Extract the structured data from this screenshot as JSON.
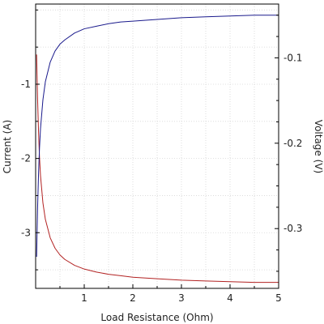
{
  "chart_data": {
    "type": "line",
    "xlabel": "Load Resistance (Ohm)",
    "ylabel_left": "Current (A)",
    "ylabel_right": "Voltage (V)",
    "xlim": [
      0,
      5
    ],
    "ylim_left": [
      -3.75,
      0.08
    ],
    "ylim_right": [
      -0.37,
      -0.037
    ],
    "grid": true,
    "x_ticks": [
      1,
      2,
      3,
      4,
      5
    ],
    "y_left_ticks": [
      -1,
      -2,
      -3
    ],
    "y_right_ticks": [
      -0.1,
      -0.2,
      -0.3
    ],
    "x_tick_labels": [
      "1",
      "2",
      "3",
      "4",
      "5"
    ],
    "y_left_tick_labels": [
      "-1",
      "-2",
      "-3"
    ],
    "y_right_tick_labels": [
      "-0.1",
      "-0.2",
      "-0.3"
    ],
    "series": [
      {
        "axis": "left",
        "color": "#b22222",
        "x": [
          0.02,
          0.04,
          0.06,
          0.08,
          0.1,
          0.15,
          0.2,
          0.3,
          0.4,
          0.5,
          0.6,
          0.8,
          1.0,
          1.25,
          1.5,
          1.75,
          2.0,
          2.5,
          3.0,
          3.5,
          4.0,
          4.5,
          5.0
        ],
        "y": [
          -0.6,
          -1.2,
          -1.65,
          -1.99,
          -2.23,
          -2.6,
          -2.82,
          -3.07,
          -3.21,
          -3.3,
          -3.36,
          -3.44,
          -3.49,
          -3.53,
          -3.56,
          -3.58,
          -3.6,
          -3.62,
          -3.64,
          -3.65,
          -3.66,
          -3.67,
          -3.67
        ]
      },
      {
        "axis": "right",
        "color": "#1a1a8c",
        "x": [
          0.02,
          0.04,
          0.06,
          0.08,
          0.1,
          0.15,
          0.2,
          0.3,
          0.4,
          0.5,
          0.6,
          0.8,
          1.0,
          1.25,
          1.5,
          1.75,
          2.0,
          2.5,
          3.0,
          3.5,
          4.0,
          4.5,
          5.0
        ],
        "y": [
          -0.333,
          -0.276,
          -0.235,
          -0.205,
          -0.183,
          -0.149,
          -0.128,
          -0.105,
          -0.092,
          -0.084,
          -0.079,
          -0.071,
          -0.066,
          -0.063,
          -0.06,
          -0.058,
          -0.057,
          -0.055,
          -0.053,
          -0.052,
          -0.051,
          -0.05,
          -0.05
        ]
      }
    ]
  }
}
